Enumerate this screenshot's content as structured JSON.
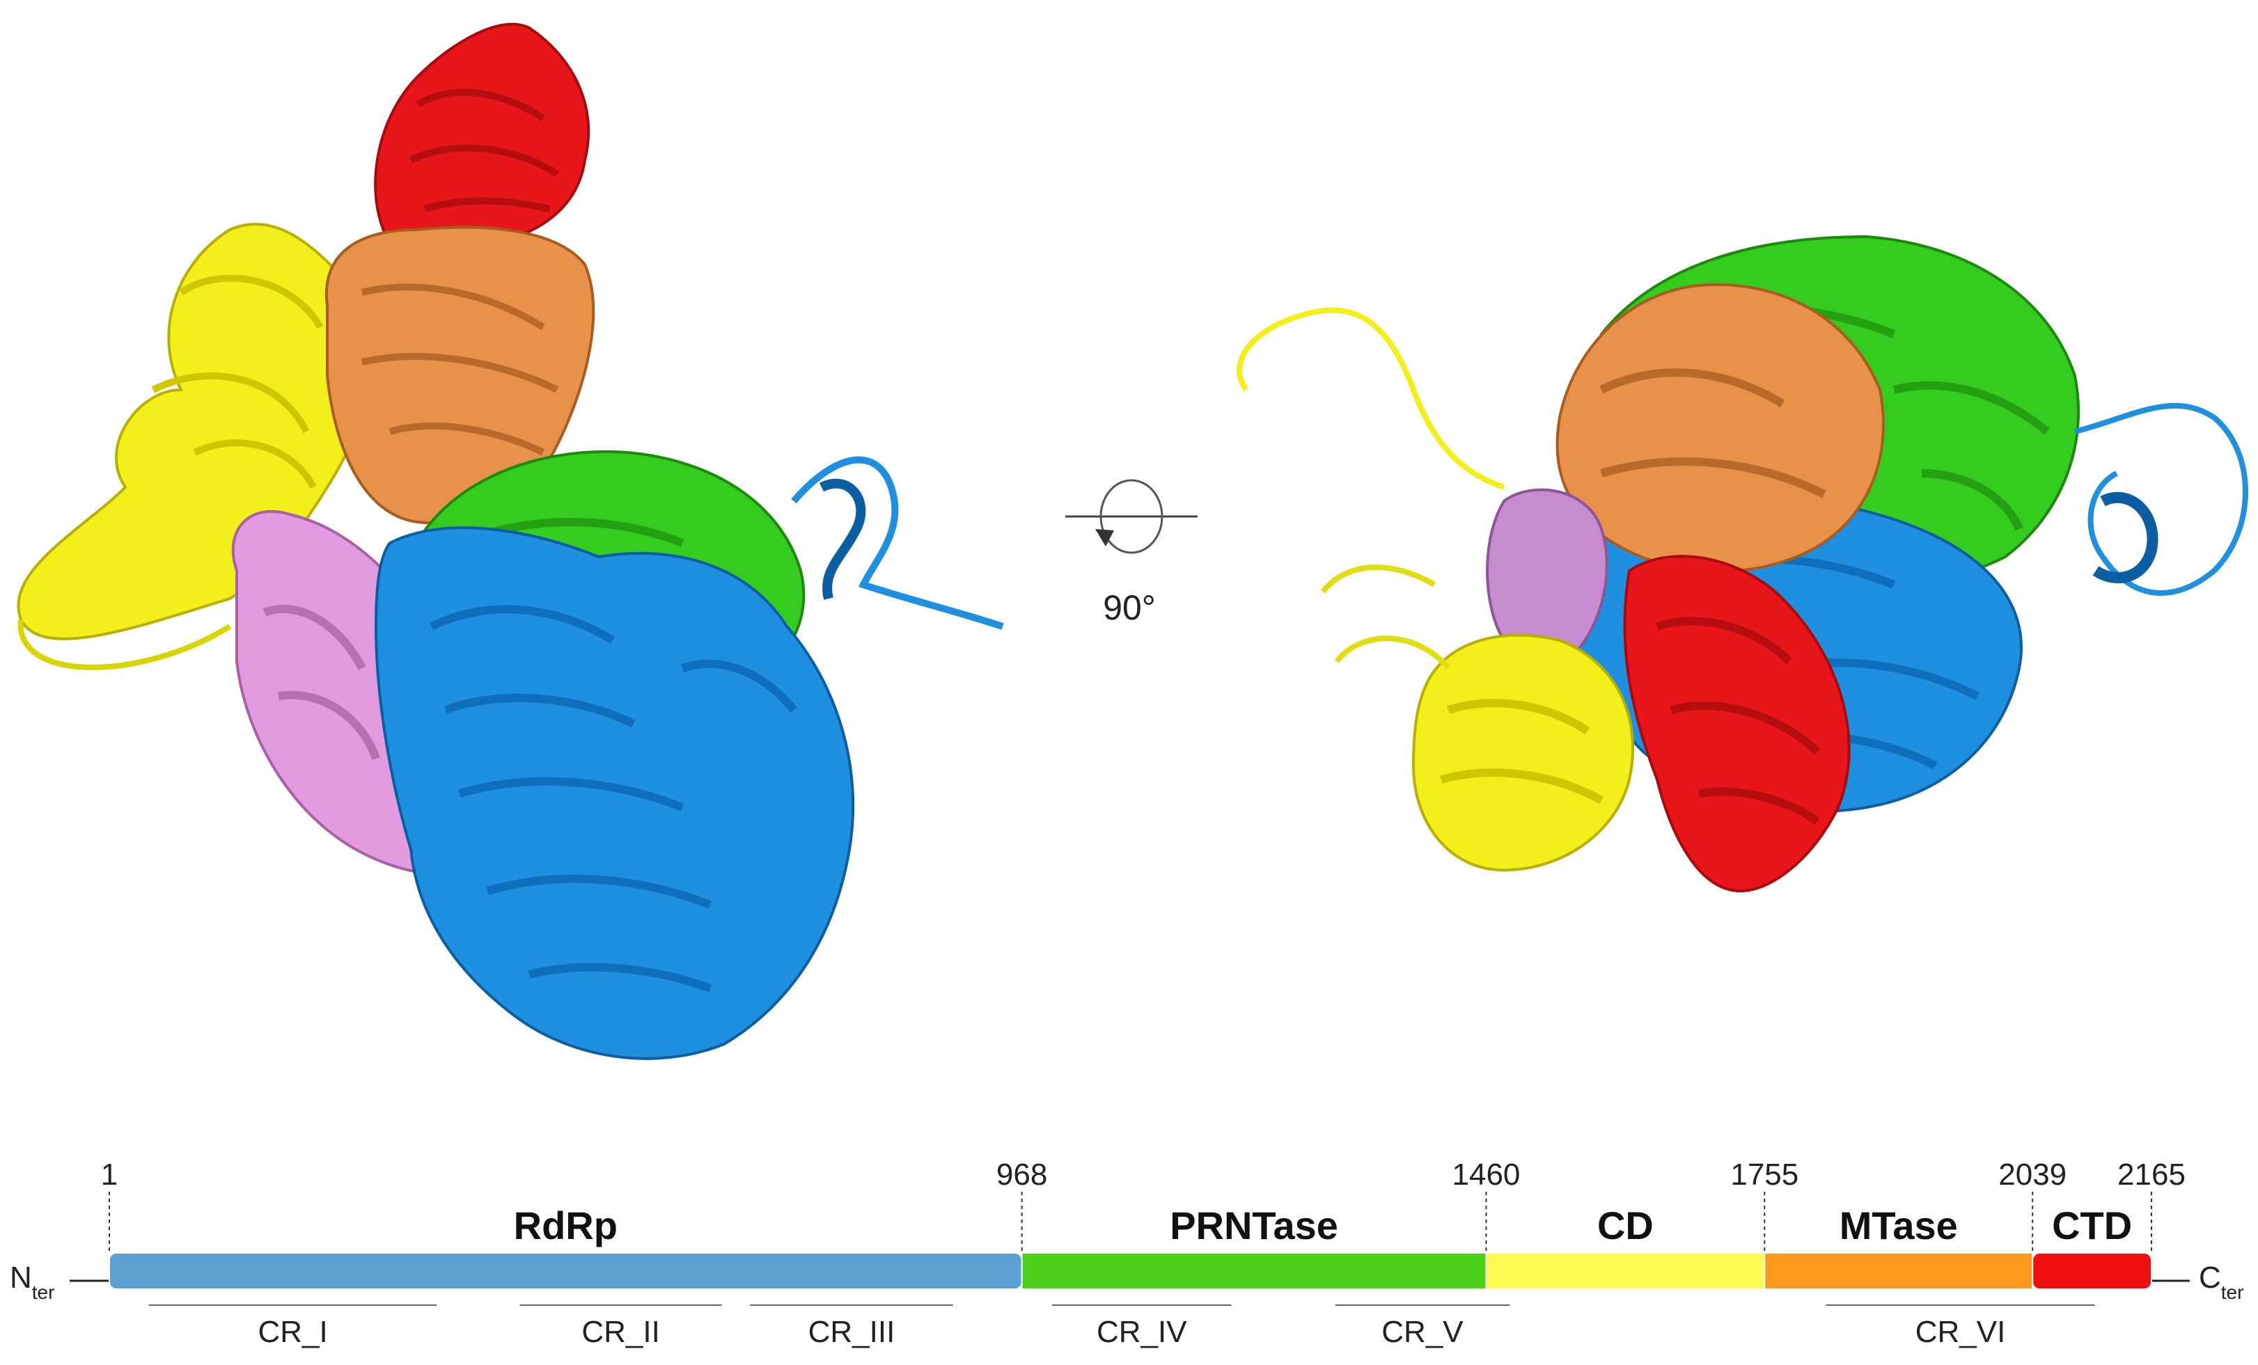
{
  "rotation": {
    "label": "90°"
  },
  "domain_map": {
    "terminals": {
      "n_main": "N",
      "n_sub": "ter",
      "c_main": "C",
      "c_sub": "ter"
    },
    "boundaries": [
      "1",
      "968",
      "1460",
      "1755",
      "2039",
      "2165"
    ],
    "domains": [
      {
        "label": "RdRp",
        "start": 1,
        "end": 968,
        "color": "#5b9fd3"
      },
      {
        "label": "PRNTase",
        "start": 968,
        "end": 1460,
        "color": "#4cd11a"
      },
      {
        "label": "CD",
        "start": 1460,
        "end": 1755,
        "color": "#fafa50"
      },
      {
        "label": "MTase",
        "start": 1755,
        "end": 2039,
        "color": "#fb9a1e"
      },
      {
        "label": "CTD",
        "start": 2039,
        "end": 2165,
        "color": "#f01010"
      }
    ],
    "conserved_regions": [
      {
        "label": "CR_I",
        "start": 43,
        "end": 348
      },
      {
        "label": "CR_II",
        "start": 436,
        "end": 650
      },
      {
        "label": "CR_III",
        "start": 680,
        "end": 895
      },
      {
        "label": "CR_IV",
        "start": 1000,
        "end": 1190
      },
      {
        "label": "CR_V",
        "start": 1300,
        "end": 1485
      },
      {
        "label": "CR_VI",
        "start": 1820,
        "end": 2105
      }
    ]
  },
  "structure_colors": {
    "rdrp": "#1f8fe0",
    "prntase": "#33cc1f",
    "cd": "#f2ef1b",
    "mtase": "#e8914a",
    "ctd": "#e8161a",
    "extra": "#e39be0"
  }
}
